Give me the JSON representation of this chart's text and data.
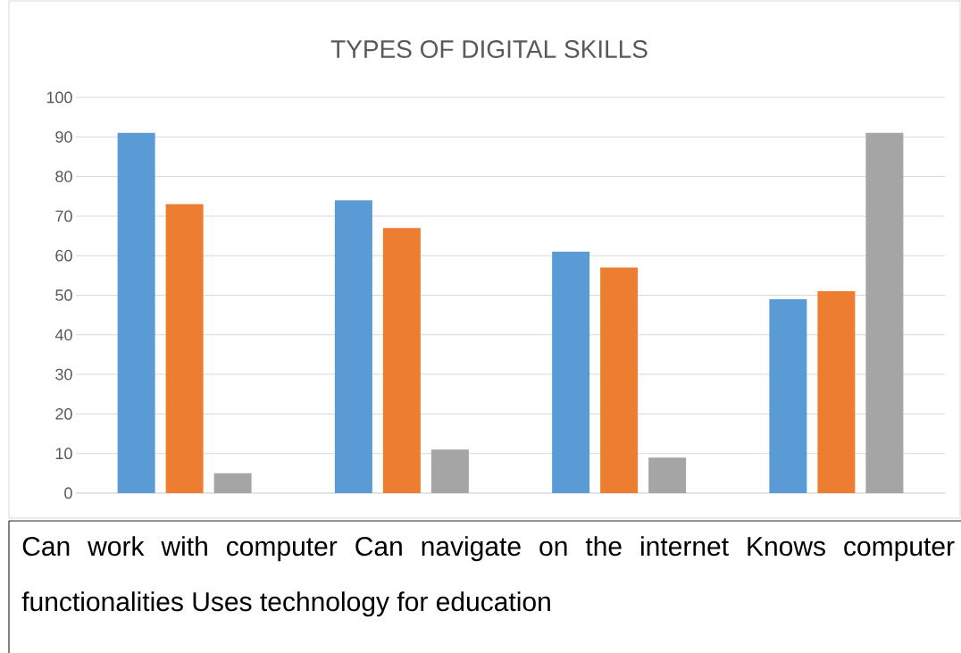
{
  "chart_data": {
    "type": "bar",
    "title": "TYPES OF DIGITAL SKILLS",
    "categories": [
      null,
      null,
      null,
      null
    ],
    "series": [
      {
        "color": "#5b9bd5",
        "values": [
          91,
          74,
          61,
          49
        ]
      },
      {
        "color": "#ed7d31",
        "values": [
          73,
          67,
          57,
          51
        ]
      },
      {
        "color": "#a5a5a5",
        "values": [
          5,
          11,
          9,
          91
        ]
      }
    ],
    "ylim": [
      0,
      100
    ],
    "yticks": [
      0,
      10,
      20,
      30,
      40,
      50,
      60,
      70,
      80,
      90,
      100
    ],
    "grid": "y",
    "annotations": [
      "Can work with computer   Can navigate on the internet   Knows computer functionalities   Uses technology for education"
    ]
  }
}
